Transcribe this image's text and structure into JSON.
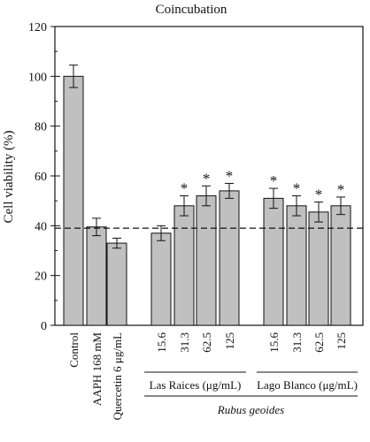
{
  "chart_data": {
    "type": "bar",
    "title": "Coincubation",
    "ylabel": "Cell viability (%)",
    "ylim": [
      0,
      120
    ],
    "yticks": [
      0,
      20,
      40,
      60,
      80,
      100,
      120
    ],
    "reference_line": 39,
    "bar_color": "#c0c0c0",
    "categories": [
      "Control",
      "AAPH 168 mM",
      "Quercetin 6 μg/mL",
      "15.6",
      "31.3",
      "62.5",
      "125",
      "15.6",
      "31.3",
      "62.5",
      "125"
    ],
    "values": [
      100,
      39.5,
      33,
      37,
      48,
      52,
      54,
      51,
      48,
      45.5,
      48
    ],
    "errors": [
      4.5,
      3.5,
      2,
      3,
      4,
      4,
      3,
      4,
      4,
      4,
      3.5
    ],
    "significant": [
      false,
      false,
      false,
      false,
      true,
      true,
      true,
      true,
      true,
      true,
      true
    ],
    "significance_marker": "*",
    "groups": [
      {
        "label": "Las Raices (μg/mL)",
        "start": 3,
        "end": 6
      },
      {
        "label": "Lago Blanco (μg/mL)",
        "start": 7,
        "end": 10
      }
    ],
    "supergroup_label": "Rubus geoides"
  }
}
